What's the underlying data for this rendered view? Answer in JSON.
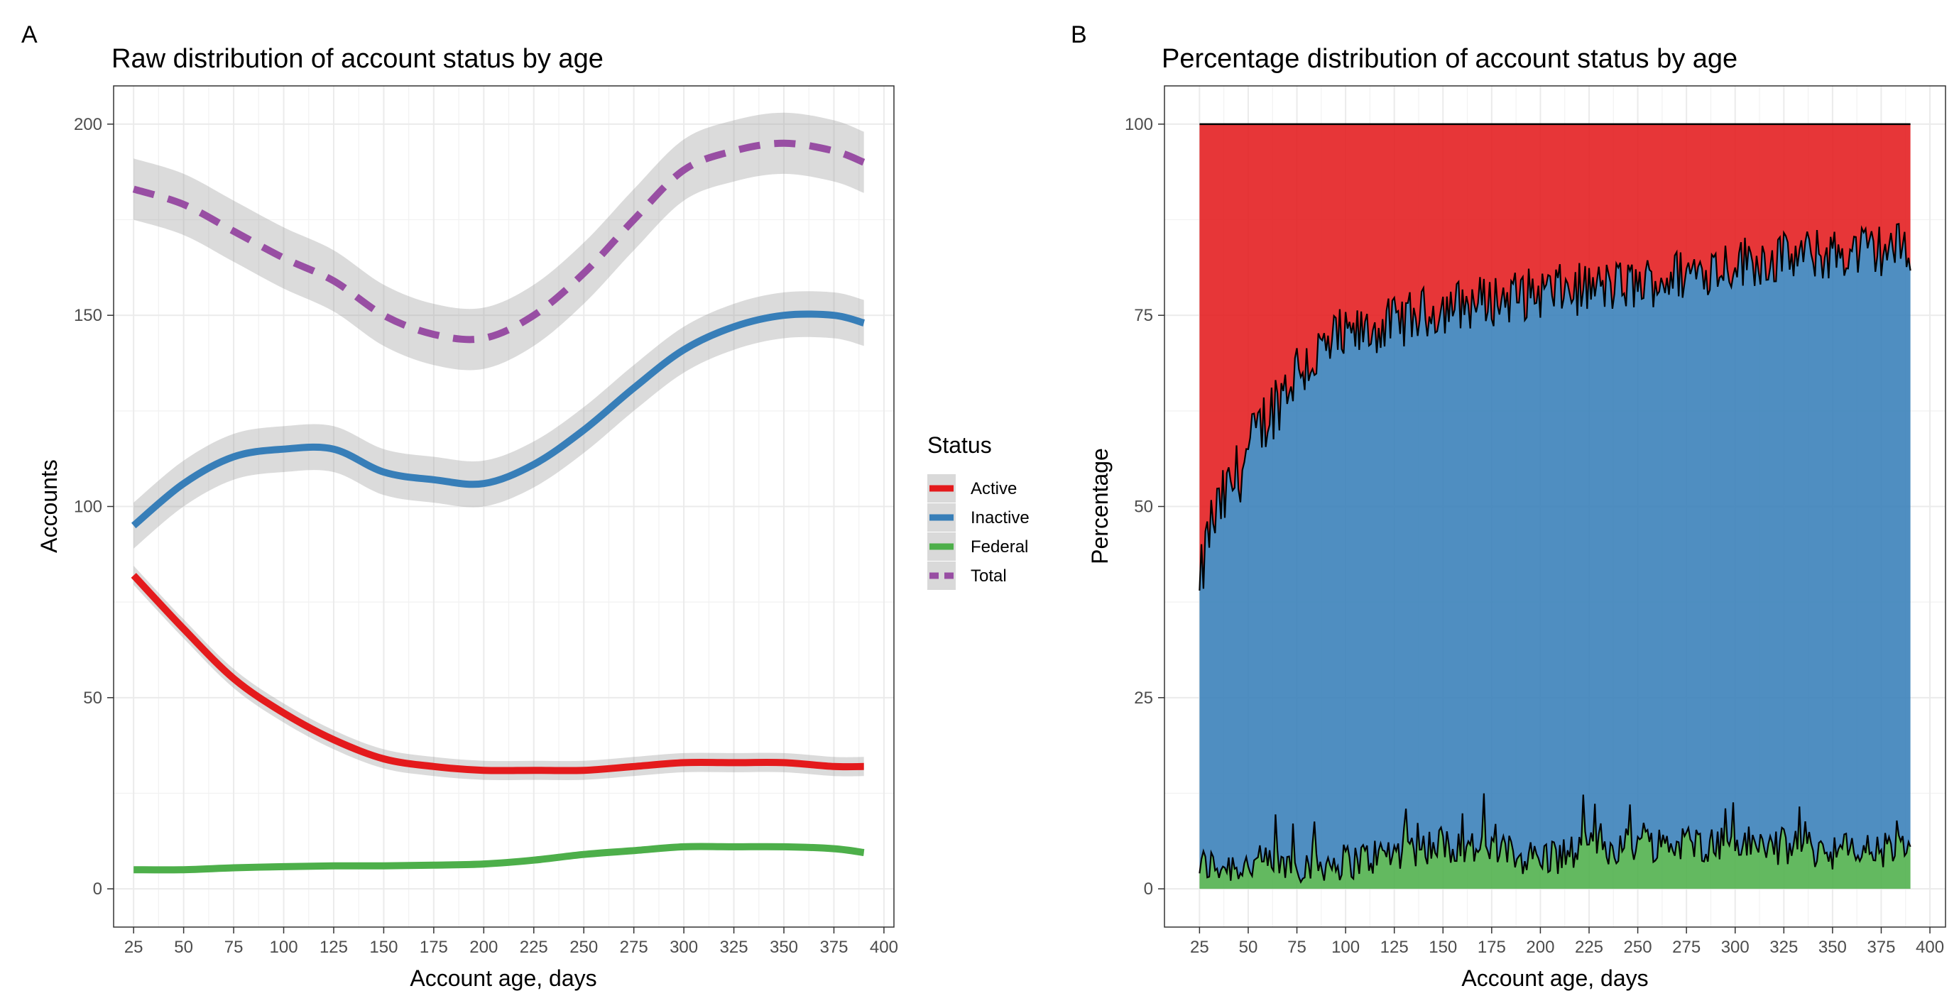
{
  "chart_data": [
    {
      "panel": "A",
      "type": "line",
      "title": "Raw distribution of account status by age",
      "xlabel": "Account age, days",
      "ylabel": "Accounts",
      "xlim": [
        15,
        405
      ],
      "ylim": [
        -10,
        210
      ],
      "xticks": [
        25,
        50,
        75,
        100,
        125,
        150,
        175,
        200,
        225,
        250,
        275,
        300,
        325,
        350,
        375,
        400
      ],
      "yticks": [
        0,
        50,
        100,
        150,
        200
      ],
      "grid": true,
      "legend": {
        "title": "Status",
        "position": "right",
        "entries": [
          {
            "label": "Active",
            "color": "#e41a1c",
            "dash": "solid"
          },
          {
            "label": "Inactive",
            "color": "#377eb8",
            "dash": "solid"
          },
          {
            "label": "Federal",
            "color": "#4daf4a",
            "dash": "solid"
          },
          {
            "label": "Total",
            "color": "#984ea3",
            "dash": "dashed"
          }
        ]
      },
      "x": [
        25,
        50,
        75,
        100,
        125,
        150,
        175,
        200,
        225,
        250,
        275,
        300,
        325,
        350,
        375,
        390
      ],
      "series": [
        {
          "name": "Total",
          "color": "#984ea3",
          "dash": "dashed",
          "se": 8,
          "values": [
            183,
            179,
            172,
            165,
            159,
            150,
            145,
            144,
            150,
            161,
            175,
            188,
            193,
            195,
            193,
            190
          ]
        },
        {
          "name": "Inactive",
          "color": "#377eb8",
          "dash": "solid",
          "se": 6,
          "values": [
            95,
            106,
            113,
            115,
            115,
            109,
            107,
            106,
            111,
            120,
            131,
            141,
            147,
            150,
            150,
            148
          ]
        },
        {
          "name": "Active",
          "color": "#e41a1c",
          "dash": "solid",
          "se": 2.5,
          "values": [
            82,
            68,
            55,
            46,
            39,
            34,
            32,
            31,
            31,
            31,
            32,
            33,
            33,
            33,
            32,
            32
          ]
        },
        {
          "name": "Federal",
          "color": "#4daf4a",
          "dash": "solid",
          "se": 0.6,
          "values": [
            5,
            5,
            5.5,
            5.8,
            6,
            6,
            6.2,
            6.5,
            7.5,
            9,
            10,
            11,
            11,
            11,
            10.5,
            9.5
          ]
        }
      ]
    },
    {
      "panel": "B",
      "type": "area",
      "title": "Percentage distribution of account status by age",
      "xlabel": "Account age, days",
      "ylabel": "Percentage",
      "xlim": [
        7,
        408
      ],
      "ylim": [
        -5,
        105
      ],
      "xticks": [
        25,
        50,
        75,
        100,
        125,
        150,
        175,
        200,
        225,
        250,
        275,
        300,
        325,
        350,
        375,
        400
      ],
      "yticks": [
        0,
        25,
        50,
        75,
        100
      ],
      "grid": true,
      "x_range": [
        25,
        390
      ],
      "stack_order": [
        "Federal",
        "Inactive",
        "Active"
      ],
      "colors": {
        "Active": "#e41a1c",
        "Inactive": "#377eb8",
        "Federal": "#4daf4a"
      },
      "cumulative_inactive_trend": {
        "x": [
          25,
          30,
          40,
          50,
          60,
          75,
          100,
          125,
          150,
          175,
          200,
          250,
          300,
          350,
          390
        ],
        "values": [
          39,
          47,
          52,
          57,
          62,
          68,
          72,
          74,
          76,
          77,
          78,
          79,
          82,
          83,
          84
        ]
      },
      "federal_trend": {
        "x": [
          25,
          100,
          150,
          200,
          250,
          300,
          350,
          390
        ],
        "values": [
          3,
          3.5,
          6,
          4,
          6,
          6,
          5,
          5
        ]
      },
      "total_level": 100
    }
  ]
}
